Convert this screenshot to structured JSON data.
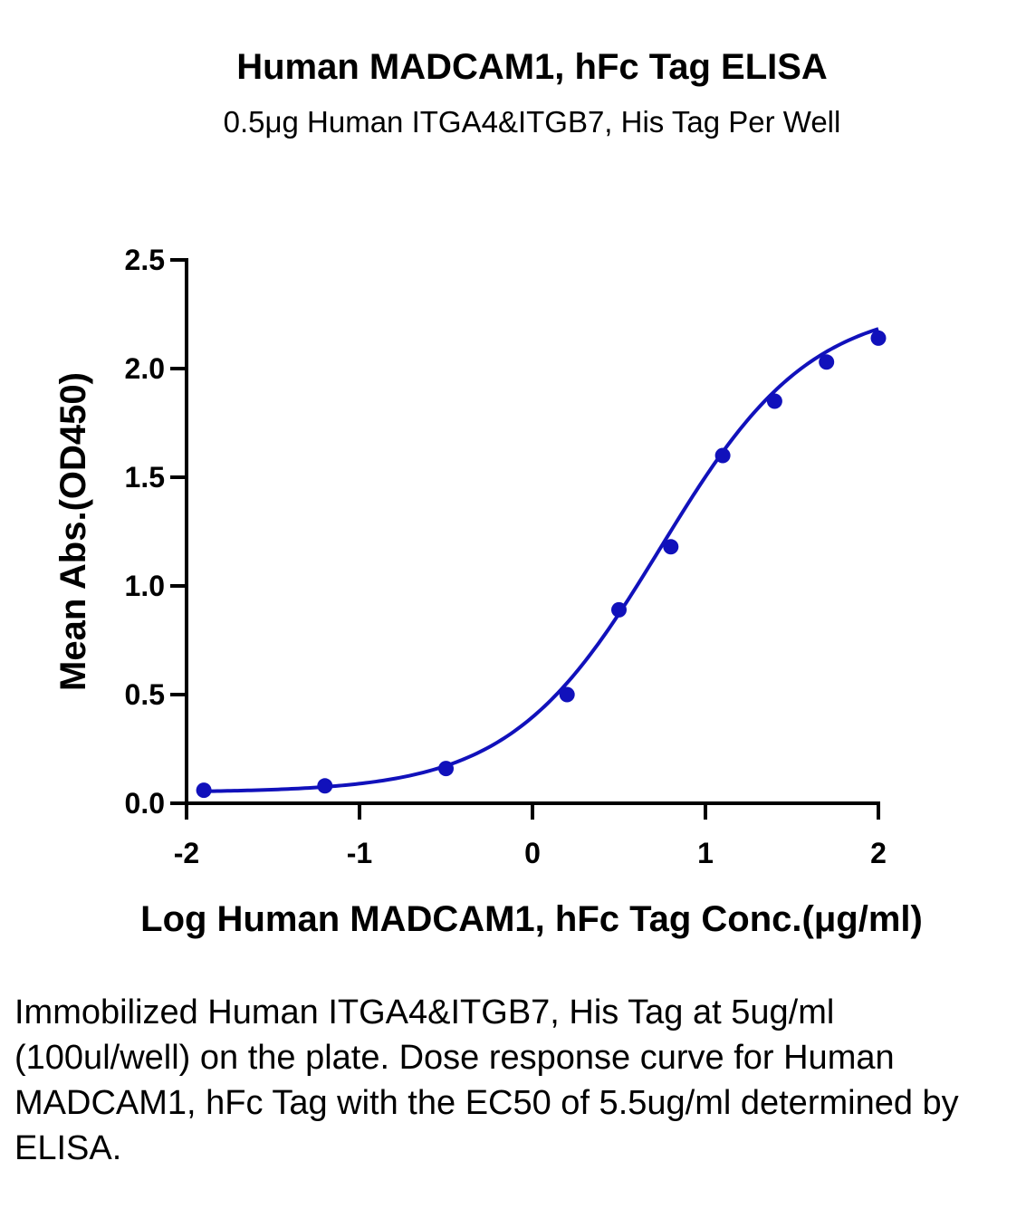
{
  "chart_data": {
    "type": "scatter",
    "title": "Human MADCAM1, hFc Tag ELISA",
    "subtitle": "0.5μg Human ITGA4&ITGB7, His Tag Per Well",
    "xlabel": "Log Human MADCAM1, hFc Tag Conc.(μg/ml)",
    "ylabel": "Mean Abs.(OD450)",
    "xlim": [
      -2,
      2
    ],
    "ylim": [
      0,
      2.5
    ],
    "x_ticks": [
      -2,
      -1,
      0,
      1,
      2
    ],
    "x_tick_labels": [
      "-2",
      "-1",
      "0",
      "1",
      "2"
    ],
    "y_ticks": [
      0,
      0.5,
      1,
      1.5,
      2,
      2.5
    ],
    "y_tick_labels": [
      "0.0",
      "0.5",
      "1.0",
      "1.5",
      "2.0",
      "2.5"
    ],
    "grid": false,
    "color": "#1111bb",
    "series": [
      {
        "x": [
          -1.9,
          -1.2,
          -0.5,
          0.2,
          0.5,
          0.8,
          1.1,
          1.4,
          1.7,
          2.0
        ],
        "y": [
          0.06,
          0.08,
          0.16,
          0.5,
          0.89,
          1.18,
          1.6,
          1.85,
          2.03,
          2.14
        ]
      }
    ],
    "fit": {
      "type": "4PL",
      "bottom": 0.05,
      "top": 2.3,
      "log_ec50": 0.74,
      "hill": 1.0
    }
  },
  "caption": "Immobilized Human ITGA4&ITGB7, His Tag at 5ug/ml (100ul/well) on the plate. Dose response curve for Human MADCAM1, hFc Tag with the EC50 of 5.5ug/ml determined by ELISA."
}
